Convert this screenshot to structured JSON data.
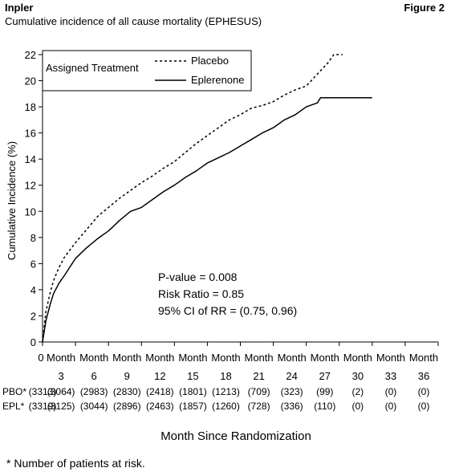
{
  "header": {
    "left_title": "Inpler",
    "right_title": "Figure 2",
    "subtitle": "Cumulative incidence of all cause mortality (EPHESUS)"
  },
  "chart_data": {
    "type": "line",
    "xlabel": "Month Since Randomization",
    "ylabel": "Cumulative Incidence (%)",
    "xlim": [
      0,
      36
    ],
    "ylim": [
      0,
      22
    ],
    "y_ticks": [
      0,
      2,
      4,
      6,
      8,
      10,
      12,
      14,
      16,
      18,
      20,
      22
    ],
    "x_ticks": [
      0,
      3,
      6,
      9,
      12,
      15,
      18,
      21,
      24,
      27,
      30,
      33,
      36
    ],
    "x_tick_top_labels": [
      "0",
      "Month",
      "Month",
      "Month",
      "Month",
      "Month",
      "Month",
      "Month",
      "Month",
      "Month",
      "Month",
      "Month",
      "Month"
    ],
    "x_tick_month_numbers": [
      "",
      "3",
      "6",
      "9",
      "12",
      "15",
      "18",
      "21",
      "24",
      "27",
      "30",
      "33",
      "36"
    ],
    "legend": {
      "title": "Assigned Treatment",
      "position": "top-left"
    },
    "series": [
      {
        "name": "Placebo",
        "style": "dashed",
        "color": "#000000",
        "x": [
          0,
          0.3,
          0.7,
          1,
          1.5,
          2,
          3,
          4,
          5,
          6,
          7,
          8,
          9,
          10,
          11,
          12,
          13,
          14,
          15,
          16,
          17,
          18,
          19,
          20,
          21,
          22,
          23,
          24,
          25,
          26,
          26.5,
          27.3
        ],
        "y": [
          0,
          2.3,
          3.8,
          4.7,
          5.7,
          6.5,
          7.6,
          8.6,
          9.6,
          10.3,
          11.0,
          11.6,
          12.2,
          12.7,
          13.3,
          13.8,
          14.5,
          15.2,
          15.8,
          16.4,
          17.0,
          17.4,
          17.9,
          18.1,
          18.4,
          18.9,
          19.3,
          19.6,
          20.5,
          21.4,
          22.0,
          22.0
        ]
      },
      {
        "name": "Eplerenone",
        "style": "solid",
        "color": "#000000",
        "x": [
          0,
          0.3,
          0.7,
          1,
          1.5,
          2,
          3,
          4,
          5,
          6,
          7,
          8,
          9,
          10,
          11,
          12,
          13,
          14,
          15,
          16,
          17,
          18,
          19,
          20,
          21,
          22,
          23,
          24,
          25,
          25.3,
          30
        ],
        "y": [
          0,
          1.6,
          2.9,
          3.7,
          4.5,
          5.1,
          6.4,
          7.2,
          7.9,
          8.5,
          9.3,
          10.0,
          10.3,
          10.9,
          11.5,
          12.0,
          12.6,
          13.1,
          13.7,
          14.1,
          14.5,
          15.0,
          15.5,
          16.0,
          16.4,
          17.0,
          17.4,
          18.0,
          18.3,
          18.7,
          18.7
        ]
      }
    ],
    "annotations": [
      "P-value = 0.008",
      "Risk Ratio = 0.85",
      "95% CI of RR = (0.75, 0.96)"
    ],
    "risk_table": {
      "rows": [
        {
          "label": "PBO*",
          "values": [
            "(3313)",
            "(3064)",
            "(2983)",
            "(2830)",
            "(2418)",
            "(1801)",
            "(1213)",
            "(709)",
            "(323)",
            "(99)",
            "(2)",
            "(0)",
            "(0)"
          ]
        },
        {
          "label": "EPL*",
          "values": [
            "(3319)",
            "(3125)",
            "(3044)",
            "(2896)",
            "(2463)",
            "(1857)",
            "(1260)",
            "(728)",
            "(336)",
            "(110)",
            "(0)",
            "(0)",
            "(0)"
          ]
        }
      ]
    },
    "footnote": "* Number of patients at risk."
  }
}
